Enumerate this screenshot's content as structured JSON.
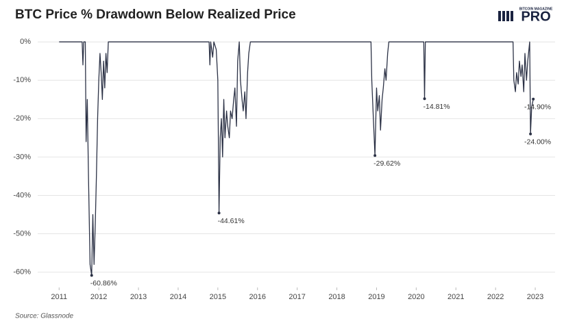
{
  "chart_data": {
    "type": "line",
    "title": "BTC Price % Drawdown Below Realized Price",
    "source": "Source: Glassnode",
    "logo": {
      "top": "BITCOIN MAGAZINE",
      "main": "PRO"
    },
    "color": "#2b3145",
    "grid": true,
    "xlim": [
      2010.46,
      2023.5
    ],
    "ylim": [
      -64,
      2
    ],
    "xticks": [
      2011,
      2012,
      2013,
      2014,
      2015,
      2016,
      2017,
      2018,
      2019,
      2020,
      2021,
      2022,
      2023
    ],
    "yticks": [
      {
        "value": 0,
        "label": "0%"
      },
      {
        "value": -10,
        "label": "-10%"
      },
      {
        "value": -20,
        "label": "-20%"
      },
      {
        "value": -30,
        "label": "-30%"
      },
      {
        "value": -40,
        "label": "-40%"
      },
      {
        "value": -50,
        "label": "-50%"
      },
      {
        "value": -60,
        "label": "-60%"
      }
    ],
    "x": [
      2011.0,
      2011.58,
      2011.6,
      2011.62,
      2011.66,
      2011.68,
      2011.71,
      2011.74,
      2011.78,
      2011.82,
      2011.85,
      2011.88,
      2011.91,
      2011.94,
      2011.97,
      2012.0,
      2012.03,
      2012.06,
      2012.09,
      2012.12,
      2012.15,
      2012.18,
      2012.21,
      2012.24,
      2014.78,
      2014.8,
      2014.82,
      2014.87,
      2014.9,
      2014.96,
      2015.0,
      2015.03,
      2015.06,
      2015.09,
      2015.12,
      2015.15,
      2015.18,
      2015.22,
      2015.25,
      2015.29,
      2015.32,
      2015.36,
      2015.4,
      2015.43,
      2015.47,
      2015.5,
      2015.54,
      2015.57,
      2015.61,
      2015.64,
      2015.68,
      2015.71,
      2015.75,
      2015.78,
      2015.82,
      2018.86,
      2018.88,
      2018.92,
      2018.96,
      2019.0,
      2019.03,
      2019.07,
      2019.1,
      2019.14,
      2019.17,
      2019.21,
      2019.24,
      2019.28,
      2019.31,
      2020.19,
      2020.21,
      2020.23,
      2022.44,
      2022.46,
      2022.5,
      2022.53,
      2022.57,
      2022.6,
      2022.64,
      2022.67,
      2022.71,
      2022.74,
      2022.78,
      2022.81,
      2022.84,
      2022.86,
      2022.88,
      2022.91,
      2022.95
    ],
    "values": [
      0,
      0,
      -6,
      0,
      0,
      -26,
      -15,
      -35,
      -58,
      -60.86,
      -45,
      -58,
      -48,
      -35,
      -20,
      -10,
      -3,
      -8,
      -15,
      -5,
      -12,
      -3,
      -8,
      0,
      0,
      -6,
      0,
      -4,
      0,
      -2,
      -10,
      -44.61,
      -25,
      -20,
      -30,
      -15,
      -25,
      -18,
      -22,
      -25,
      -18,
      -20,
      -15,
      -12,
      -22,
      -5,
      0,
      -10,
      -15,
      -18,
      -13,
      -20,
      -8,
      -3,
      0,
      0,
      -10,
      -20,
      -29.62,
      -12,
      -18,
      -14,
      -23,
      -15,
      -12,
      -7,
      -10,
      -3,
      0,
      0,
      -14.81,
      0,
      0,
      -10,
      -13,
      -8,
      -11,
      -5,
      -9,
      -6,
      -13,
      -3,
      -10,
      -5,
      -2,
      0,
      -24.0,
      -17,
      -14.9
    ],
    "value_labels": [
      null,
      null,
      null,
      null,
      null,
      null,
      null,
      null,
      null,
      "-60.86%",
      null,
      null,
      null,
      null,
      null,
      null,
      null,
      null,
      null,
      null,
      null,
      null,
      null,
      null,
      null,
      null,
      null,
      null,
      null,
      null,
      null,
      "-44.61%",
      null,
      null,
      null,
      null,
      null,
      null,
      null,
      null,
      null,
      null,
      null,
      null,
      null,
      null,
      null,
      null,
      null,
      null,
      null,
      null,
      null,
      null,
      null,
      null,
      null,
      null,
      "-29.62%",
      null,
      null,
      null,
      null,
      null,
      null,
      null,
      null,
      null,
      null,
      null,
      "-14.81%",
      null,
      null,
      null,
      null,
      null,
      null,
      null,
      null,
      null,
      null,
      null,
      null,
      null,
      null,
      null,
      "-24.00%",
      null,
      "-14.90%"
    ]
  }
}
